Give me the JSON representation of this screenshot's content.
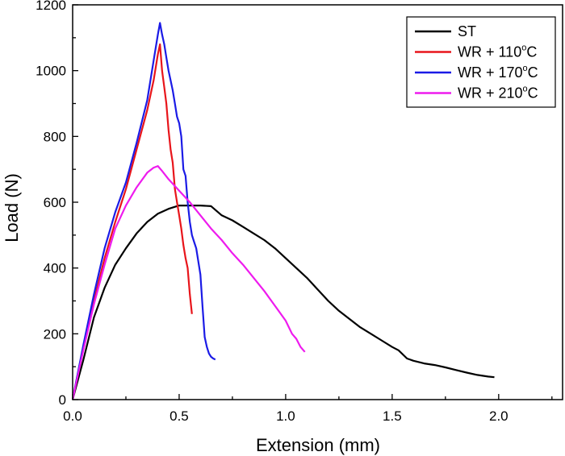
{
  "chart_data": {
    "type": "line",
    "title": "",
    "xlabel": "Extension (mm)",
    "ylabel": "Load (N)",
    "xlim": [
      0,
      2.3
    ],
    "ylim": [
      0,
      1200
    ],
    "x_ticks": [
      "0.0",
      "0.5",
      "1.0",
      "1.5",
      "2.0"
    ],
    "x_tick_values": [
      0,
      0.5,
      1.0,
      1.5,
      2.0
    ],
    "y_ticks": [
      "0",
      "200",
      "400",
      "600",
      "800",
      "1000",
      "1200"
    ],
    "y_tick_values": [
      0,
      200,
      400,
      600,
      800,
      1000,
      1200
    ],
    "grid": false,
    "legend_position": "top-right",
    "series": [
      {
        "name": "ST",
        "legend_parts": [
          "ST",
          "",
          ""
        ],
        "color": "#000000",
        "points": [
          [
            0,
            0
          ],
          [
            0.05,
            120
          ],
          [
            0.1,
            250
          ],
          [
            0.15,
            340
          ],
          [
            0.2,
            410
          ],
          [
            0.25,
            460
          ],
          [
            0.3,
            505
          ],
          [
            0.35,
            540
          ],
          [
            0.4,
            565
          ],
          [
            0.45,
            580
          ],
          [
            0.5,
            590
          ],
          [
            0.55,
            590
          ],
          [
            0.6,
            590
          ],
          [
            0.65,
            588
          ],
          [
            0.7,
            560
          ],
          [
            0.75,
            545
          ],
          [
            0.8,
            525
          ],
          [
            0.85,
            505
          ],
          [
            0.9,
            485
          ],
          [
            0.95,
            460
          ],
          [
            1.0,
            430
          ],
          [
            1.05,
            400
          ],
          [
            1.1,
            370
          ],
          [
            1.15,
            335
          ],
          [
            1.2,
            300
          ],
          [
            1.25,
            270
          ],
          [
            1.3,
            245
          ],
          [
            1.35,
            220
          ],
          [
            1.4,
            200
          ],
          [
            1.45,
            180
          ],
          [
            1.5,
            160
          ],
          [
            1.53,
            150
          ],
          [
            1.57,
            125
          ],
          [
            1.6,
            118
          ],
          [
            1.65,
            110
          ],
          [
            1.7,
            105
          ],
          [
            1.75,
            98
          ],
          [
            1.8,
            90
          ],
          [
            1.85,
            82
          ],
          [
            1.9,
            75
          ],
          [
            1.95,
            70
          ],
          [
            1.98,
            68
          ]
        ]
      },
      {
        "name": "WR + 110°C",
        "legend_parts": [
          "WR + 110",
          "o",
          "C"
        ],
        "color": "#e8151b",
        "points": [
          [
            0,
            0
          ],
          [
            0.05,
            160
          ],
          [
            0.1,
            300
          ],
          [
            0.15,
            430
          ],
          [
            0.2,
            540
          ],
          [
            0.25,
            640
          ],
          [
            0.3,
            760
          ],
          [
            0.35,
            880
          ],
          [
            0.38,
            970
          ],
          [
            0.4,
            1050
          ],
          [
            0.41,
            1080
          ],
          [
            0.42,
            1000
          ],
          [
            0.43,
            950
          ],
          [
            0.44,
            900
          ],
          [
            0.45,
            820
          ],
          [
            0.46,
            760
          ],
          [
            0.47,
            720
          ],
          [
            0.48,
            640
          ],
          [
            0.49,
            600
          ],
          [
            0.5,
            560
          ],
          [
            0.51,
            520
          ],
          [
            0.52,
            470
          ],
          [
            0.53,
            430
          ],
          [
            0.54,
            400
          ],
          [
            0.55,
            320
          ],
          [
            0.56,
            260
          ]
        ]
      },
      {
        "name": "WR + 170°C",
        "legend_parts": [
          "WR + 170",
          "o",
          "C"
        ],
        "color": "#1b1be6",
        "points": [
          [
            0,
            0
          ],
          [
            0.05,
            165
          ],
          [
            0.1,
            320
          ],
          [
            0.15,
            460
          ],
          [
            0.2,
            570
          ],
          [
            0.25,
            660
          ],
          [
            0.3,
            780
          ],
          [
            0.35,
            910
          ],
          [
            0.38,
            1030
          ],
          [
            0.4,
            1110
          ],
          [
            0.41,
            1145
          ],
          [
            0.42,
            1110
          ],
          [
            0.43,
            1080
          ],
          [
            0.44,
            1040
          ],
          [
            0.45,
            1000
          ],
          [
            0.46,
            970
          ],
          [
            0.47,
            940
          ],
          [
            0.48,
            900
          ],
          [
            0.49,
            860
          ],
          [
            0.5,
            840
          ],
          [
            0.51,
            800
          ],
          [
            0.52,
            700
          ],
          [
            0.53,
            680
          ],
          [
            0.54,
            600
          ],
          [
            0.55,
            540
          ],
          [
            0.56,
            500
          ],
          [
            0.57,
            480
          ],
          [
            0.58,
            460
          ],
          [
            0.59,
            420
          ],
          [
            0.6,
            380
          ],
          [
            0.61,
            280
          ],
          [
            0.62,
            190
          ],
          [
            0.63,
            160
          ],
          [
            0.64,
            140
          ],
          [
            0.65,
            130
          ],
          [
            0.66,
            125
          ],
          [
            0.67,
            122
          ]
        ]
      },
      {
        "name": "WR + 210°C",
        "legend_parts": [
          "WR + 210",
          "o",
          "C"
        ],
        "color": "#ee1bee",
        "points": [
          [
            0,
            0
          ],
          [
            0.05,
            150
          ],
          [
            0.1,
            290
          ],
          [
            0.15,
            410
          ],
          [
            0.2,
            520
          ],
          [
            0.25,
            590
          ],
          [
            0.3,
            645
          ],
          [
            0.35,
            690
          ],
          [
            0.38,
            705
          ],
          [
            0.4,
            710
          ],
          [
            0.42,
            695
          ],
          [
            0.45,
            670
          ],
          [
            0.5,
            635
          ],
          [
            0.55,
            600
          ],
          [
            0.6,
            560
          ],
          [
            0.65,
            520
          ],
          [
            0.7,
            485
          ],
          [
            0.75,
            445
          ],
          [
            0.8,
            410
          ],
          [
            0.85,
            370
          ],
          [
            0.9,
            330
          ],
          [
            0.95,
            285
          ],
          [
            1.0,
            240
          ],
          [
            1.03,
            200
          ],
          [
            1.05,
            185
          ],
          [
            1.07,
            160
          ],
          [
            1.09,
            145
          ]
        ]
      }
    ]
  }
}
